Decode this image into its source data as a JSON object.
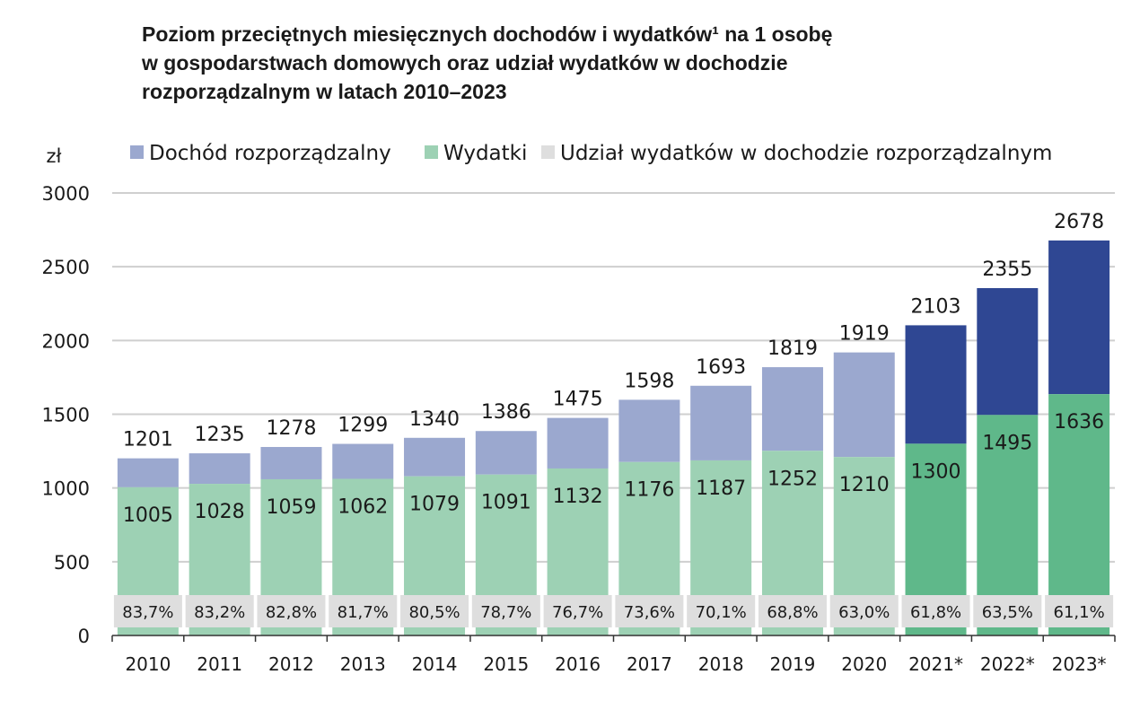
{
  "chart_data": {
    "type": "bar",
    "title": "Poziom przeciętnych miesięcznych dochodów i wydatków¹ na 1 osobę\n w gospodarstwach domowych oraz udział wydatków w dochodzie\nrozporządzalnym w latach 2010–2023",
    "ylabel": "zł",
    "ylim": [
      0,
      3000
    ],
    "yticks": [
      0,
      500,
      1000,
      1500,
      2000,
      2500,
      3000
    ],
    "grid": true,
    "legend_placement": "top",
    "categories": [
      "2010",
      "2011",
      "2012",
      "2013",
      "2014",
      "2015",
      "2016",
      "2017",
      "2018",
      "2019",
      "2020",
      "2021*",
      "2022*",
      "2023*"
    ],
    "series": [
      {
        "name": "Dochód rozporządzalny",
        "values": [
          1201,
          1235,
          1278,
          1299,
          1340,
          1386,
          1475,
          1598,
          1693,
          1819,
          1919,
          2103,
          2355,
          2678
        ],
        "color": "#9ba8cf",
        "color_highlight": "#2f4793"
      },
      {
        "name": "Wydatki",
        "values": [
          1005,
          1028,
          1059,
          1062,
          1079,
          1091,
          1132,
          1176,
          1187,
          1252,
          1210,
          1300,
          1495,
          1636
        ],
        "color": "#9dd1b4",
        "color_highlight": "#5fb88a"
      },
      {
        "name": "Udział wydatków w dochodzie rozporządzalnym",
        "labels": [
          "83,7%",
          "83,2%",
          "82,8%",
          "81,7%",
          "80,5%",
          "78,7%",
          "76,7%",
          "73,6%",
          "70,1%",
          "68,8%",
          "63,0%",
          "61,8%",
          "63,5%",
          "61,1%"
        ],
        "color": "#dedede"
      }
    ],
    "highlighted_categories": [
      "2021*",
      "2022*",
      "2023*"
    ]
  }
}
